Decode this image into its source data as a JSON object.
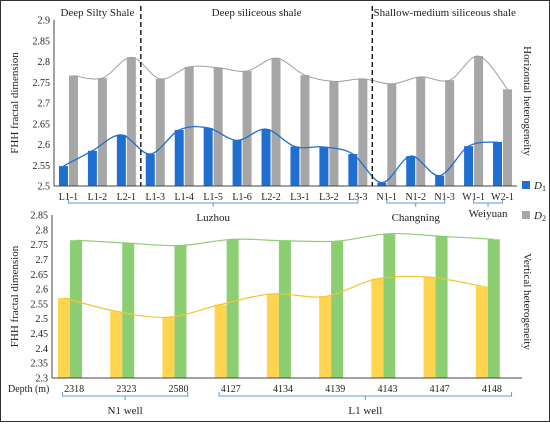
{
  "chart_data": [
    {
      "type": "bar",
      "ylabel": "FHH fractal dimension",
      "right_label": "Horizontal heterogeneity",
      "ylim": [
        2.5,
        2.9
      ],
      "yticks": [
        "2.5",
        "2.55",
        "2.6",
        "2.65",
        "2.7",
        "2.75",
        "2.8",
        "2.85",
        "2.9"
      ],
      "categories": [
        "L1-1",
        "L1-2",
        "L2-1",
        "L1-3",
        "L1-4",
        "L1-5",
        "L1-6",
        "L2-2",
        "L3-1",
        "L3-2",
        "L3-3",
        "N1-1",
        "N1-2",
        "N1-3",
        "W1-1",
        "W2-1"
      ],
      "series": [
        {
          "name": "D1",
          "color": "#1f6fd1",
          "values": [
            2.548,
            2.585,
            2.623,
            2.577,
            2.635,
            2.64,
            2.61,
            2.637,
            2.595,
            2.594,
            2.577,
            2.508,
            2.572,
            2.525,
            2.596,
            2.606
          ]
        },
        {
          "name": "D2",
          "color": "#a6a6a6",
          "values": [
            2.766,
            2.76,
            2.81,
            2.758,
            2.787,
            2.785,
            2.777,
            2.808,
            2.767,
            2.752,
            2.758,
            2.746,
            2.763,
            2.755,
            2.813,
            2.733
          ]
        }
      ],
      "regions": [
        "Deep Silty Shale",
        "Deep siliceous shale",
        "Shallow-medium siliceous shale"
      ],
      "groups": [
        "Luzhou",
        "Changning",
        "Weiyuan"
      ],
      "legend": {
        "d1": "D",
        "d1_sub": "1",
        "d2": "D",
        "d2_sub": "2"
      },
      "grid": false
    },
    {
      "type": "bar",
      "ylabel": "FHH fractal dimension",
      "right_label": "Vertical heterogeneity",
      "xlabel": "Depth (m)",
      "ylim": [
        2.3,
        2.85
      ],
      "yticks": [
        "2.3",
        "2.35",
        "2.4",
        "2.45",
        "2.5",
        "2.55",
        "2.6",
        "2.65",
        "2.7",
        "2.75",
        "2.8",
        "2.85"
      ],
      "categories": [
        "2318",
        "2323",
        "2580",
        "4127",
        "4134",
        "4139",
        "4143",
        "4147",
        "4148"
      ],
      "series": [
        {
          "name": "D1",
          "color": "#ffd54f",
          "values": [
            2.57,
            2.525,
            2.505,
            2.548,
            2.584,
            2.575,
            2.635,
            2.64,
            2.61
          ]
        },
        {
          "name": "D2",
          "color": "#8ccf73",
          "values": [
            2.765,
            2.755,
            2.747,
            2.768,
            2.763,
            2.762,
            2.787,
            2.778,
            2.768
          ]
        }
      ],
      "groups": [
        "N1 well",
        "L1 well"
      ],
      "grid": false
    }
  ]
}
